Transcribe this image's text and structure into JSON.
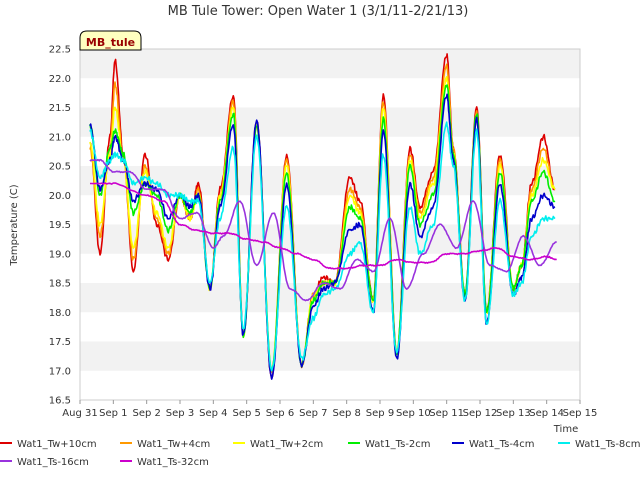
{
  "chart_data": {
    "type": "line",
    "title": "MB Tule Tower: Open Water 1 (3/1/11-2/21/13)",
    "xlabel": "Time",
    "ylabel": "Temperature (C)",
    "station_label": "MB_tule",
    "xlim": [
      0,
      15
    ],
    "ylim": [
      16.5,
      22.5
    ],
    "x_tick_values": [
      0,
      1,
      2,
      3,
      4,
      5,
      6,
      7,
      8,
      9,
      10,
      11,
      12,
      13,
      14,
      15
    ],
    "x_tick_labels": [
      "Aug 31",
      "Sep 1",
      "Sep 2",
      "Sep 3",
      "Sep 4",
      "Sep 5",
      "Sep 6",
      "Sep 7",
      "Sep 8",
      "Sep 9",
      "Sep 10",
      "Sep 11",
      "Sep 12",
      "Sep 13",
      "Sep 14",
      "Sep 15"
    ],
    "y_ticks": [
      16.5,
      17.0,
      17.5,
      18.0,
      18.5,
      19.0,
      19.5,
      20.0,
      20.5,
      21.0,
      21.5,
      22.0,
      22.5
    ],
    "y_tick_labels": [
      "16.5",
      "17.0",
      "17.5",
      "18.0",
      "18.5",
      "19.0",
      "19.5",
      "20.0",
      "20.5",
      "21.0",
      "21.5",
      "22.0",
      "22.5"
    ],
    "grid": "horizontal bands",
    "legend": "bottom",
    "series": [
      {
        "name": "Wat1_Tw+10cm",
        "color": "#dd0000",
        "x": [
          0.3,
          0.6,
          0.9,
          1.05,
          1.3,
          1.6,
          1.95,
          2.3,
          2.65,
          3.0,
          3.3,
          3.55,
          3.9,
          4.2,
          4.6,
          4.9,
          5.3,
          5.75,
          6.2,
          6.65,
          7.0,
          7.3,
          7.65,
          8.1,
          8.4,
          8.8,
          9.1,
          9.5,
          9.9,
          10.2,
          10.6,
          11.0,
          11.2,
          11.55,
          11.9,
          12.2,
          12.6,
          13.0,
          13.25,
          13.55,
          13.9,
          14.25
        ],
        "values": [
          20.9,
          19.0,
          21.0,
          22.3,
          20.7,
          18.7,
          20.7,
          19.5,
          18.9,
          20.0,
          19.6,
          20.2,
          18.4,
          20.1,
          21.7,
          17.6,
          21.3,
          16.9,
          20.7,
          17.1,
          18.3,
          18.6,
          18.5,
          20.3,
          19.9,
          18.2,
          21.7,
          17.3,
          20.8,
          19.8,
          20.4,
          22.4,
          20.8,
          18.3,
          21.5,
          18.0,
          20.7,
          18.4,
          18.8,
          20.2,
          21.0,
          20.1
        ]
      },
      {
        "name": "Wat1_Tw+4cm",
        "color": "#ff9900",
        "x": [
          0.3,
          0.6,
          0.9,
          1.05,
          1.3,
          1.6,
          1.95,
          2.3,
          2.65,
          3.0,
          3.3,
          3.55,
          3.9,
          4.2,
          4.6,
          4.9,
          5.3,
          5.75,
          6.2,
          6.65,
          7.0,
          7.3,
          7.65,
          8.1,
          8.4,
          8.8,
          9.1,
          9.5,
          9.9,
          10.2,
          10.6,
          11.0,
          11.2,
          11.55,
          11.9,
          12.2,
          12.6,
          13.0,
          13.25,
          13.55,
          13.9,
          14.25
        ],
        "values": [
          20.8,
          19.3,
          20.8,
          21.9,
          20.6,
          18.9,
          20.5,
          19.6,
          19.0,
          20.0,
          19.6,
          20.1,
          18.4,
          20.0,
          21.6,
          17.6,
          21.2,
          17.0,
          20.6,
          17.1,
          18.3,
          18.5,
          18.5,
          20.1,
          19.8,
          18.2,
          21.6,
          17.3,
          20.7,
          19.7,
          20.3,
          22.2,
          20.8,
          18.3,
          21.4,
          18.0,
          20.6,
          18.4,
          18.8,
          20.1,
          20.8,
          20.1
        ]
      },
      {
        "name": "Wat1_Tw+2cm",
        "color": "#ffff00",
        "x": [
          0.3,
          0.6,
          0.9,
          1.05,
          1.3,
          1.6,
          1.95,
          2.3,
          2.65,
          3.0,
          3.3,
          3.55,
          3.9,
          4.2,
          4.6,
          4.9,
          5.3,
          5.75,
          6.2,
          6.65,
          7.0,
          7.3,
          7.65,
          8.1,
          8.4,
          8.8,
          9.1,
          9.5,
          9.9,
          10.2,
          10.6,
          11.0,
          11.2,
          11.55,
          11.9,
          12.2,
          12.6,
          13.0,
          13.25,
          13.55,
          13.9,
          14.25
        ],
        "values": [
          20.9,
          19.5,
          20.7,
          21.5,
          20.6,
          19.1,
          20.4,
          19.7,
          19.1,
          20.0,
          19.6,
          20.0,
          18.4,
          20.0,
          21.5,
          17.6,
          21.2,
          17.0,
          20.5,
          17.1,
          18.3,
          18.5,
          18.5,
          20.0,
          19.7,
          18.2,
          21.5,
          17.3,
          20.6,
          19.6,
          20.2,
          22.0,
          20.7,
          18.3,
          21.3,
          18.0,
          20.5,
          18.4,
          18.8,
          20.0,
          20.6,
          20.1
        ]
      },
      {
        "name": "Wat1_Ts-2cm",
        "color": "#00ee00",
        "x": [
          0.3,
          0.6,
          0.9,
          1.05,
          1.3,
          1.6,
          1.95,
          2.3,
          2.65,
          3.0,
          3.3,
          3.55,
          3.9,
          4.2,
          4.6,
          4.9,
          5.3,
          5.75,
          6.2,
          6.65,
          7.0,
          7.3,
          7.65,
          8.1,
          8.4,
          8.8,
          9.1,
          9.5,
          9.9,
          10.2,
          10.6,
          11.0,
          11.2,
          11.55,
          11.9,
          12.2,
          12.6,
          13.0,
          13.25,
          13.55,
          13.9,
          14.25
        ],
        "values": [
          21.2,
          20.0,
          20.8,
          21.1,
          20.7,
          19.7,
          20.2,
          20.0,
          19.4,
          20.0,
          19.7,
          20.0,
          18.4,
          19.9,
          21.4,
          17.6,
          21.2,
          17.0,
          20.4,
          17.1,
          18.2,
          18.5,
          18.5,
          19.8,
          19.6,
          18.2,
          21.3,
          17.3,
          20.5,
          19.5,
          20.0,
          21.9,
          20.7,
          18.3,
          21.4,
          18.0,
          20.4,
          18.4,
          18.8,
          19.9,
          20.4,
          19.9
        ]
      },
      {
        "name": "Wat1_Ts-4cm",
        "color": "#0000cc",
        "x": [
          0.3,
          0.6,
          0.9,
          1.05,
          1.3,
          1.6,
          1.95,
          2.3,
          2.65,
          3.0,
          3.3,
          3.55,
          3.9,
          4.2,
          4.6,
          4.9,
          5.3,
          5.75,
          6.2,
          6.65,
          7.0,
          7.3,
          7.65,
          8.1,
          8.4,
          8.8,
          9.1,
          9.5,
          9.9,
          10.2,
          10.6,
          11.0,
          11.2,
          11.55,
          11.9,
          12.2,
          12.6,
          13.0,
          13.25,
          13.55,
          13.9,
          14.25
        ],
        "values": [
          21.2,
          20.1,
          20.6,
          21.0,
          20.6,
          19.9,
          20.2,
          20.1,
          19.6,
          20.0,
          19.8,
          20.0,
          18.4,
          19.8,
          21.2,
          17.6,
          21.3,
          16.9,
          20.2,
          17.1,
          18.1,
          18.4,
          18.5,
          19.4,
          19.5,
          18.0,
          21.1,
          17.2,
          20.2,
          19.3,
          19.8,
          21.7,
          20.6,
          18.2,
          21.3,
          17.8,
          20.2,
          18.3,
          18.6,
          19.6,
          20.0,
          19.8
        ]
      },
      {
        "name": "Wat1_Ts-8cm",
        "color": "#00eeee",
        "x": [
          0.3,
          0.6,
          0.9,
          1.05,
          1.3,
          1.6,
          1.95,
          2.3,
          2.65,
          3.0,
          3.3,
          3.55,
          3.9,
          4.2,
          4.6,
          4.9,
          5.3,
          5.75,
          6.2,
          6.65,
          7.0,
          7.3,
          7.65,
          8.1,
          8.4,
          8.8,
          9.1,
          9.5,
          9.9,
          10.2,
          10.6,
          11.0,
          11.2,
          11.55,
          11.9,
          12.2,
          12.6,
          13.0,
          13.25,
          13.55,
          13.9,
          14.25
        ],
        "values": [
          21.1,
          20.3,
          20.6,
          20.7,
          20.6,
          20.2,
          20.3,
          20.2,
          20.0,
          20.0,
          19.9,
          19.9,
          18.5,
          19.6,
          20.8,
          17.7,
          21.0,
          17.0,
          19.8,
          17.2,
          17.9,
          18.3,
          18.4,
          19.0,
          19.2,
          18.0,
          20.7,
          17.3,
          19.8,
          19.0,
          19.5,
          21.2,
          20.5,
          18.2,
          21.1,
          17.8,
          19.9,
          18.3,
          18.5,
          19.3,
          19.6,
          19.6
        ]
      },
      {
        "name": "Wat1_Ts-16cm",
        "color": "#9933dd",
        "x": [
          0.3,
          0.6,
          1.0,
          1.5,
          2.0,
          2.5,
          3.0,
          3.5,
          4.0,
          4.3,
          4.8,
          5.3,
          5.8,
          6.3,
          6.8,
          7.3,
          7.8,
          8.3,
          8.8,
          9.3,
          9.8,
          10.3,
          10.8,
          11.3,
          11.8,
          12.3,
          12.8,
          13.3,
          13.8,
          14.3
        ],
        "values": [
          20.6,
          20.6,
          20.4,
          20.4,
          20.1,
          20.1,
          19.6,
          19.7,
          19.1,
          19.3,
          19.9,
          18.8,
          19.7,
          18.4,
          18.2,
          18.5,
          18.4,
          18.9,
          18.7,
          19.6,
          18.4,
          19.0,
          19.5,
          19.1,
          19.9,
          18.8,
          18.7,
          19.3,
          18.8,
          19.2
        ]
      },
      {
        "name": "Wat1_Ts-32cm",
        "color": "#cc00cc",
        "x": [
          0.3,
          1.0,
          2.0,
          2.5,
          3.0,
          3.5,
          4.0,
          4.5,
          5.0,
          5.5,
          6.0,
          6.5,
          7.0,
          7.5,
          8.0,
          8.5,
          9.0,
          9.5,
          10.0,
          10.5,
          11.0,
          11.5,
          12.0,
          12.5,
          13.0,
          13.5,
          14.0,
          14.3
        ],
        "values": [
          20.2,
          20.2,
          20.0,
          19.9,
          19.5,
          19.4,
          19.35,
          19.35,
          19.25,
          19.2,
          19.1,
          19.0,
          18.9,
          18.75,
          18.75,
          18.8,
          18.8,
          18.9,
          18.85,
          18.85,
          19.0,
          19.0,
          19.05,
          19.1,
          18.95,
          18.9,
          18.95,
          18.9
        ]
      }
    ]
  }
}
